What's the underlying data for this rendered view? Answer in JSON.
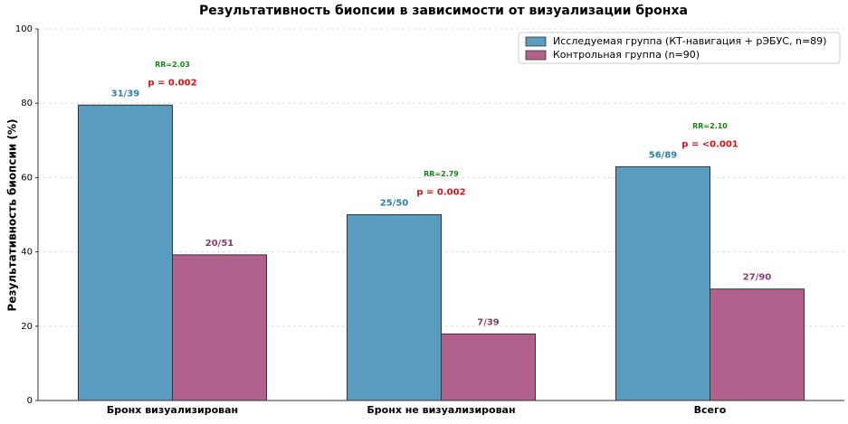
{
  "chart_data": {
    "type": "bar",
    "title": "Результативность биопсии в зависимости от визуализации бронха",
    "y_label": "Результативность биопсии (%)",
    "categories": [
      "Бронх визуализирован",
      "Бронх не визуализирован",
      "Всего"
    ],
    "series": [
      {
        "name": "Исследуемая группа (КТ-навигация + рЭБУС, n=89)",
        "color": "#5a9cbf",
        "label_color": "#2e7fa8",
        "values": [
          79.5,
          50.0,
          62.9
        ],
        "value_labels": [
          "31/39",
          "25/50",
          "56/89"
        ]
      },
      {
        "name": "Контрольная группа (n=90)",
        "color": "#b0618c",
        "label_color": "#8b3a6e",
        "values": [
          39.2,
          17.9,
          30.0
        ],
        "value_labels": [
          "20/51",
          "7/39",
          "27/90"
        ]
      }
    ],
    "annotations": [
      {
        "rr": "RR=2.03",
        "p": "p = 0.002"
      },
      {
        "rr": "RR=2.79",
        "p": "p = 0.002"
      },
      {
        "rr": "RR=2.10",
        "p": "p = <0.001"
      }
    ],
    "ylim": [
      0,
      100
    ],
    "yticks": [
      0,
      20,
      40,
      60,
      80,
      100
    ],
    "grid": true,
    "legend": "upper right"
  }
}
